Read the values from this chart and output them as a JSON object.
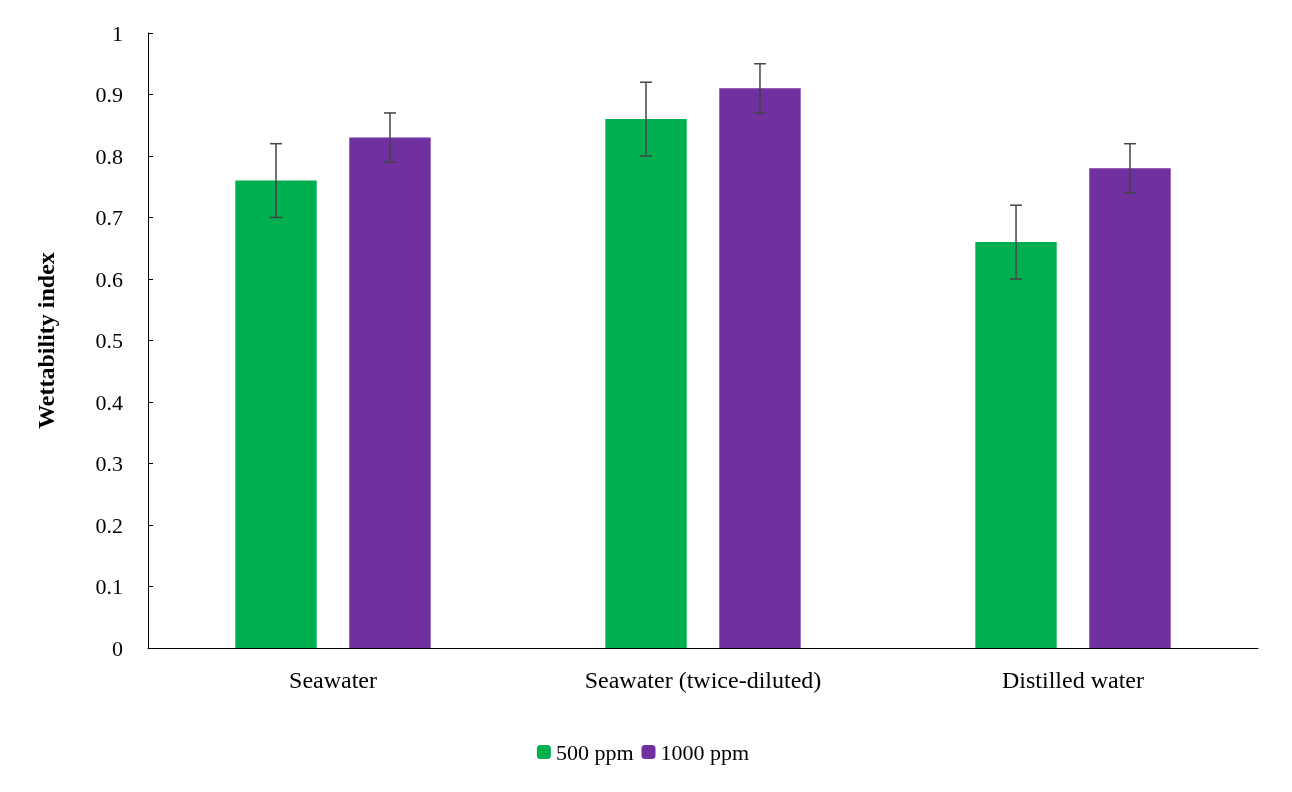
{
  "chart_data": {
    "type": "bar",
    "ylabel": "Wettability index",
    "categories": [
      "Seawater",
      "Seawater (twice-diluted)",
      "Distilled water"
    ],
    "series": [
      {
        "name": "500 ppm",
        "color": "#00b050",
        "values": [
          0.76,
          0.86,
          0.66
        ],
        "errors": [
          0.06,
          0.06,
          0.06
        ]
      },
      {
        "name": "1000 ppm",
        "color": "#7030a0",
        "values": [
          0.83,
          0.91,
          0.78
        ],
        "errors": [
          0.04,
          0.04,
          0.04
        ]
      }
    ],
    "ylim": [
      0,
      1
    ],
    "yticks": [
      0,
      0.1,
      0.2,
      0.3,
      0.4,
      0.5,
      0.6,
      0.7,
      0.8,
      0.9,
      1
    ],
    "grid": false,
    "legend": "bottom"
  }
}
